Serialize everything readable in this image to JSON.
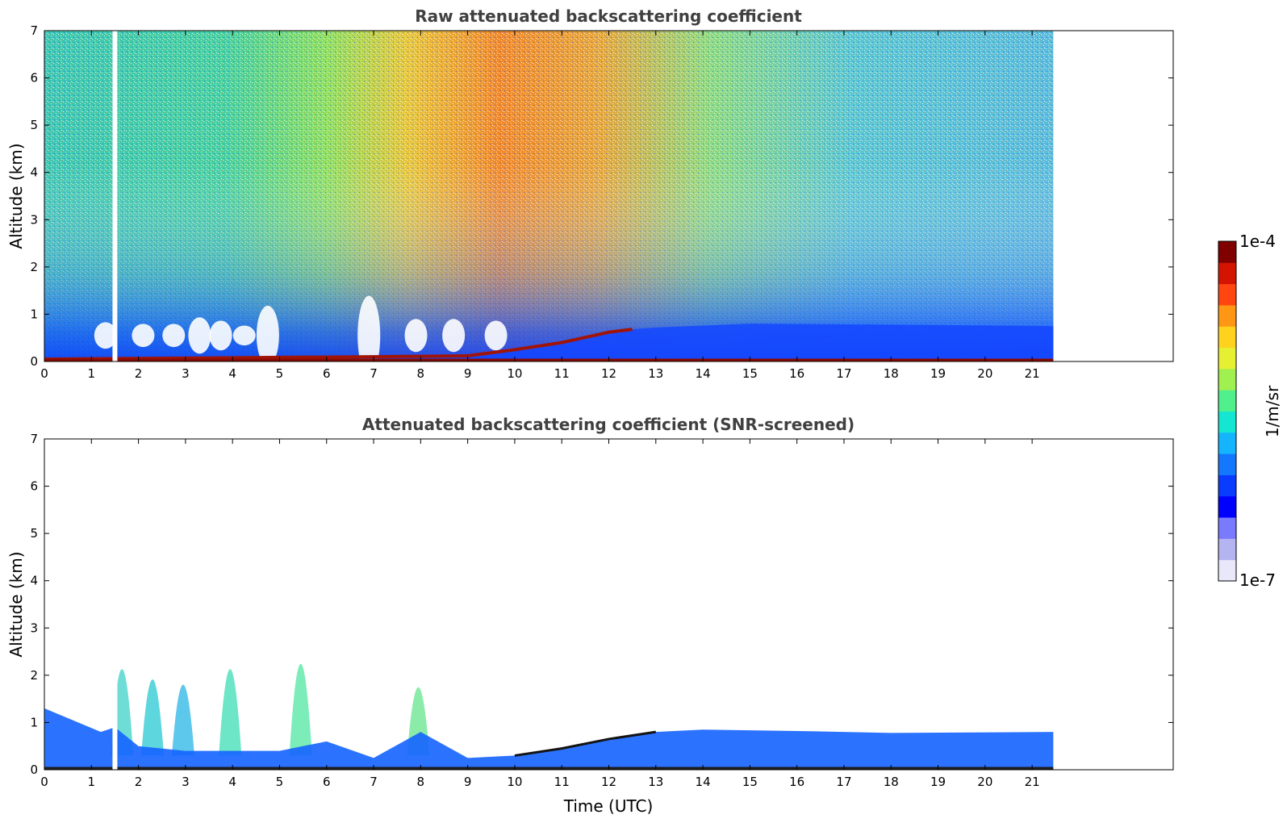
{
  "chart_data": [
    {
      "type": "heatmap",
      "title": "Raw attenuated backscattering coefficient",
      "xlabel": "",
      "ylabel": "Altitude (km)",
      "xlim": [
        0,
        24
      ],
      "ylim": [
        0,
        7
      ],
      "xticks": [
        "0",
        "1",
        "2",
        "3",
        "4",
        "5",
        "6",
        "7",
        "8",
        "9",
        "10",
        "11",
        "12",
        "13",
        "14",
        "15",
        "16",
        "17",
        "18",
        "19",
        "20",
        "21"
      ],
      "yticks": [
        "0",
        "1",
        "2",
        "3",
        "4",
        "5",
        "6",
        "7"
      ],
      "data_end_time": 21.45,
      "data_gap_time": 1.5,
      "grid": false
    },
    {
      "type": "heatmap",
      "title": "Attenuated backscattering coefficient (SNR-screened)",
      "xlabel": "Time (UTC)",
      "ylabel": "Altitude (km)",
      "xlim": [
        0,
        24
      ],
      "ylim": [
        0,
        7
      ],
      "xticks": [
        "0",
        "1",
        "2",
        "3",
        "4",
        "5",
        "6",
        "7",
        "8",
        "9",
        "10",
        "11",
        "12",
        "13",
        "14",
        "15",
        "16",
        "17",
        "18",
        "19",
        "20",
        "21"
      ],
      "yticks": [
        "0",
        "1",
        "2",
        "3",
        "4",
        "5",
        "6",
        "7"
      ],
      "data_end_time": 21.45,
      "data_gap_time": 1.5,
      "grid": false
    }
  ],
  "colorbar": {
    "label": "1/m/sr",
    "max_label": "1e-4",
    "min_label": "1e-7",
    "scale": "log",
    "range": [
      1e-07,
      0.0001
    ],
    "colors": [
      "#e8e8fa",
      "#b4b4f0",
      "#7a7aff",
      "#0000ff",
      "#0a3cff",
      "#1478ff",
      "#14b4ff",
      "#14e6d2",
      "#50f08c",
      "#a0f050",
      "#e6f032",
      "#ffd21e",
      "#ff9614",
      "#ff4610",
      "#d21400",
      "#800000"
    ]
  }
}
